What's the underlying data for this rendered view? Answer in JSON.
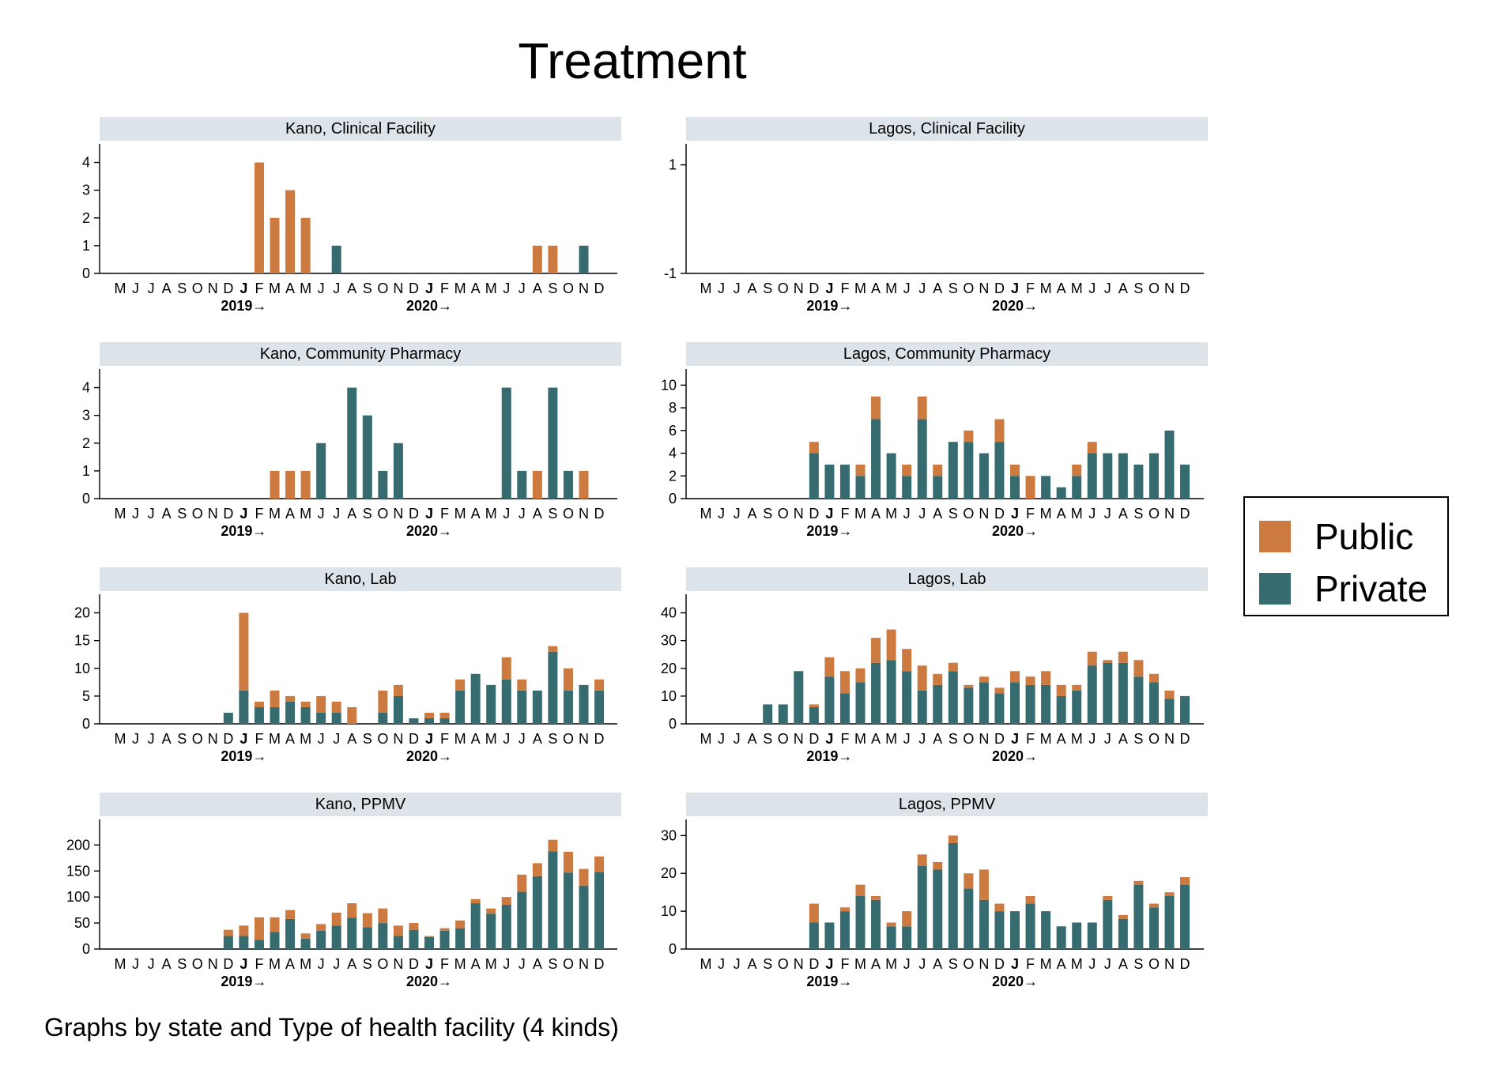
{
  "title": "Treatment",
  "footnote": "Graphs by state and Type of health facility (4 kinds)",
  "colors": {
    "public": "#cc7a3f",
    "private": "#366b6f",
    "header": "#dce4ea"
  },
  "legend": [
    {
      "key": "public",
      "label": "Public",
      "color": "#cc7a3f"
    },
    {
      "key": "private",
      "label": "Private",
      "color": "#366b6f"
    }
  ],
  "chart_data": {
    "type": "bar",
    "stacked": true,
    "months": [
      "M",
      "J",
      "J",
      "A",
      "S",
      "O",
      "N",
      "D",
      "J",
      "F",
      "M",
      "A",
      "M",
      "J",
      "J",
      "A",
      "S",
      "O",
      "N",
      "D",
      "J",
      "F",
      "M",
      "A",
      "M",
      "J",
      "J",
      "A",
      "S",
      "O",
      "N",
      "D"
    ],
    "bold_month_indices": [
      8,
      20
    ],
    "year_labels": [
      {
        "label": "2019→",
        "at_month_index": 8
      },
      {
        "label": "2020→",
        "at_month_index": 20
      }
    ],
    "legend_position": "right",
    "panels": [
      {
        "title": "Kano, Clinical Facility",
        "yticks": [
          0,
          1,
          2,
          3,
          4
        ],
        "ylim": [
          0,
          4.5
        ],
        "series": [
          {
            "name": "Private",
            "values": [
              0,
              0,
              0,
              0,
              0,
              0,
              0,
              0,
              0,
              0,
              0,
              0,
              0,
              0,
              1,
              0,
              0,
              0,
              0,
              0,
              0,
              0,
              0,
              0,
              0,
              0,
              0,
              0,
              0,
              0,
              1,
              0
            ]
          },
          {
            "name": "Public",
            "values": [
              0,
              0,
              0,
              0,
              0,
              0,
              0,
              0,
              0,
              4,
              2,
              3,
              2,
              0,
              0,
              0,
              0,
              0,
              0,
              0,
              0,
              0,
              0,
              0,
              0,
              0,
              0,
              1,
              1,
              0,
              0,
              0
            ]
          }
        ]
      },
      {
        "title": "Lagos, Clinical Facility",
        "yticks": [
          -1,
          1
        ],
        "ylim": [
          -1,
          1.3
        ],
        "series": [
          {
            "name": "Private",
            "values": [
              0,
              0,
              0,
              0,
              0,
              0,
              0,
              0,
              0,
              0,
              0,
              0,
              0,
              0,
              0,
              0,
              0,
              0,
              0,
              0,
              0,
              0,
              0,
              0,
              0,
              0,
              0,
              0,
              0,
              0,
              0,
              0
            ]
          },
          {
            "name": "Public",
            "values": [
              0,
              0,
              0,
              0,
              0,
              0,
              0,
              0,
              0,
              0,
              0,
              0,
              0,
              0,
              0,
              0,
              0,
              0,
              0,
              0,
              0,
              0,
              0,
              0,
              0,
              0,
              0,
              0,
              0,
              0,
              0,
              0
            ]
          }
        ]
      },
      {
        "title": "Kano, Community Pharmacy",
        "yticks": [
          0,
          1,
          2,
          3,
          4
        ],
        "ylim": [
          0,
          4.5
        ],
        "series": [
          {
            "name": "Private",
            "values": [
              0,
              0,
              0,
              0,
              0,
              0,
              0,
              0,
              0,
              0,
              0,
              0,
              0,
              2,
              0,
              4,
              3,
              1,
              2,
              0,
              0,
              0,
              0,
              0,
              0,
              4,
              1,
              0,
              4,
              1,
              0,
              0
            ]
          },
          {
            "name": "Public",
            "values": [
              0,
              0,
              0,
              0,
              0,
              0,
              0,
              0,
              0,
              0,
              1,
              1,
              1,
              0,
              0,
              0,
              0,
              0,
              0,
              0,
              0,
              0,
              0,
              0,
              0,
              0,
              0,
              1,
              0,
              0,
              1,
              0
            ]
          }
        ]
      },
      {
        "title": "Lagos, Community Pharmacy",
        "yticks": [
          0,
          2,
          4,
          6,
          8,
          10
        ],
        "ylim": [
          0,
          11
        ],
        "series": [
          {
            "name": "Private",
            "values": [
              0,
              0,
              0,
              0,
              0,
              0,
              0,
              4,
              3,
              3,
              2,
              7,
              4,
              2,
              7,
              2,
              5,
              5,
              4,
              5,
              2,
              0,
              2,
              1,
              2,
              4,
              4,
              4,
              3,
              4,
              6,
              3
            ]
          },
          {
            "name": "Public",
            "values": [
              0,
              0,
              0,
              0,
              0,
              0,
              0,
              1,
              0,
              0,
              1,
              2,
              0,
              1,
              2,
              1,
              0,
              1,
              0,
              2,
              1,
              2,
              0,
              0,
              1,
              1,
              0,
              0,
              0,
              0,
              0,
              0
            ]
          }
        ]
      },
      {
        "title": "Kano, Lab",
        "yticks": [
          0,
          5,
          10,
          15,
          20
        ],
        "ylim": [
          0,
          22.5
        ],
        "series": [
          {
            "name": "Private",
            "values": [
              0,
              0,
              0,
              0,
              0,
              0,
              0,
              2,
              6,
              3,
              3,
              4,
              3,
              2,
              2,
              0,
              0,
              2,
              5,
              1,
              1,
              1,
              6,
              9,
              7,
              8,
              6,
              6,
              13,
              6,
              7,
              6
            ]
          },
          {
            "name": "Public",
            "values": [
              0,
              0,
              0,
              0,
              0,
              0,
              0,
              0,
              14,
              1,
              3,
              1,
              1,
              3,
              2,
              3,
              0,
              4,
              2,
              0,
              1,
              1,
              2,
              0,
              0,
              4,
              2,
              0,
              1,
              4,
              0,
              2
            ]
          }
        ]
      },
      {
        "title": "Lagos, Lab",
        "yticks": [
          0,
          10,
          20,
          30,
          40
        ],
        "ylim": [
          0,
          45
        ],
        "series": [
          {
            "name": "Private",
            "values": [
              0,
              0,
              0,
              0,
              7,
              7,
              19,
              6,
              17,
              11,
              15,
              22,
              23,
              19,
              12,
              14,
              19,
              13,
              15,
              11,
              15,
              14,
              14,
              10,
              12,
              21,
              22,
              22,
              17,
              15,
              9,
              10
            ]
          },
          {
            "name": "Public",
            "values": [
              0,
              0,
              0,
              0,
              0,
              0,
              0,
              1,
              7,
              8,
              5,
              9,
              11,
              8,
              9,
              4,
              3,
              1,
              2,
              2,
              4,
              3,
              5,
              4,
              2,
              5,
              1,
              4,
              6,
              3,
              3,
              0
            ]
          }
        ]
      },
      {
        "title": "Kano, PPMV",
        "yticks": [
          0,
          50,
          100,
          150,
          200
        ],
        "ylim": [
          0,
          240
        ],
        "series": [
          {
            "name": "Private",
            "values": [
              0,
              0,
              0,
              0,
              0,
              0,
              0,
              25,
              25,
              18,
              33,
              58,
              20,
              35,
              45,
              60,
              42,
              50,
              25,
              37,
              23,
              35,
              40,
              88,
              68,
              85,
              110,
              140,
              188,
              147,
              122,
              148
            ]
          },
          {
            "name": "Public",
            "values": [
              0,
              0,
              0,
              0,
              0,
              0,
              0,
              12,
              20,
              43,
              28,
              17,
              10,
              13,
              25,
              28,
              27,
              28,
              20,
              13,
              2,
              5,
              15,
              8,
              10,
              15,
              33,
              25,
              22,
              40,
              32,
              30
            ]
          }
        ]
      },
      {
        "title": "Lagos, PPMV",
        "yticks": [
          0,
          10,
          20,
          30
        ],
        "ylim": [
          0,
          33
        ],
        "series": [
          {
            "name": "Private",
            "values": [
              0,
              0,
              0,
              0,
              0,
              0,
              0,
              7,
              7,
              10,
              14,
              13,
              6,
              6,
              22,
              21,
              28,
              16,
              13,
              10,
              10,
              12,
              10,
              6,
              7,
              7,
              13,
              8,
              17,
              11,
              14,
              17
            ]
          },
          {
            "name": "Public",
            "values": [
              0,
              0,
              0,
              0,
              0,
              0,
              0,
              5,
              0,
              1,
              3,
              1,
              1,
              4,
              3,
              2,
              2,
              4,
              8,
              2,
              0,
              2,
              0,
              0,
              0,
              0,
              1,
              1,
              1,
              1,
              1,
              2
            ]
          }
        ]
      }
    ]
  }
}
